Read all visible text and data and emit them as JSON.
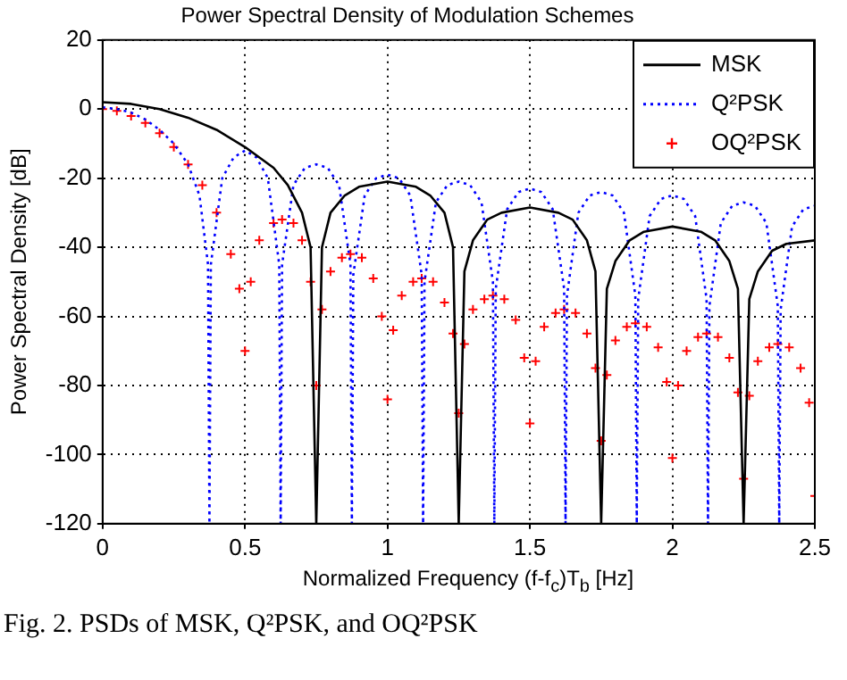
{
  "chart_data": {
    "type": "line",
    "title": "Power Spectral Density of Modulation Schemes",
    "xlabel": "Normalized Frequency (f-f$_{c}$)T$_{b}$ [Hz]",
    "ylabel": "Power Spectral Density [dB]",
    "annotations": [
      "Fig. 2. PSDs of MSK, Q²PSK, and OQ²PSK"
    ],
    "xlim": [
      0,
      2.5
    ],
    "ylim": [
      -120,
      20
    ],
    "xticks": [
      0,
      0.5,
      1,
      1.5,
      2,
      2.5
    ],
    "yticks": [
      -120,
      -100,
      -80,
      -60,
      -40,
      -20,
      0,
      20
    ],
    "grid": true,
    "legend": "top right",
    "series": [
      {
        "name": "MSK",
        "color": "#000000",
        "line_style": "solid",
        "marker": "none",
        "x": [
          0,
          0.1,
          0.2,
          0.3,
          0.4,
          0.5,
          0.6,
          0.65,
          0.7,
          0.73,
          0.75,
          0.77,
          0.8,
          0.85,
          0.9,
          1.0,
          1.1,
          1.15,
          1.2,
          1.23,
          1.25,
          1.27,
          1.3,
          1.35,
          1.4,
          1.5,
          1.6,
          1.65,
          1.7,
          1.73,
          1.75,
          1.77,
          1.8,
          1.85,
          1.9,
          2.0,
          2.1,
          2.15,
          2.2,
          2.23,
          2.25,
          2.27,
          2.3,
          2.35,
          2.4,
          2.5
        ],
        "values": [
          2,
          1.5,
          0,
          -2.5,
          -6,
          -11,
          -17,
          -22,
          -30,
          -40,
          -120,
          -40,
          -30,
          -25,
          -22.5,
          -21,
          -22.5,
          -25,
          -30,
          -40,
          -120,
          -47,
          -38,
          -32,
          -30,
          -28.5,
          -30,
          -32,
          -38,
          -47,
          -120,
          -52,
          -44,
          -38,
          -35.5,
          -34,
          -35.5,
          -38,
          -44,
          -52,
          -120,
          -55,
          -47,
          -41,
          -39,
          -38
        ]
      },
      {
        "name": "Q²PSK",
        "color": "#0000ff",
        "line_style": "dotted",
        "marker": "none",
        "x": [
          0,
          0.05,
          0.1,
          0.15,
          0.2,
          0.25,
          0.3,
          0.34,
          0.37,
          0.375,
          0.38,
          0.42,
          0.46,
          0.5,
          0.54,
          0.58,
          0.62,
          0.625,
          0.63,
          0.67,
          0.71,
          0.75,
          0.79,
          0.83,
          0.87,
          0.875,
          0.88,
          0.92,
          0.96,
          1.0,
          1.04,
          1.08,
          1.12,
          1.125,
          1.13,
          1.17,
          1.21,
          1.25,
          1.29,
          1.33,
          1.37,
          1.375,
          1.38,
          1.42,
          1.46,
          1.5,
          1.54,
          1.58,
          1.62,
          1.625,
          1.63,
          1.67,
          1.71,
          1.75,
          1.79,
          1.83,
          1.87,
          1.875,
          1.88,
          1.92,
          1.96,
          2.0,
          2.04,
          2.08,
          2.12,
          2.125,
          2.13,
          2.17,
          2.21,
          2.25,
          2.29,
          2.33,
          2.37,
          2.375,
          2.38,
          2.42,
          2.46,
          2.5
        ],
        "values": [
          0.5,
          0,
          -1,
          -3,
          -6,
          -10,
          -16,
          -25,
          -45,
          -120,
          -45,
          -20,
          -14,
          -12,
          -14,
          -20,
          -45,
          -120,
          -45,
          -22,
          -17,
          -16,
          -17,
          -22,
          -45,
          -120,
          -48,
          -25,
          -20,
          -19,
          -20,
          -25,
          -48,
          -120,
          -50,
          -27,
          -22,
          -21,
          -22,
          -27,
          -50,
          -120,
          -52,
          -29,
          -24,
          -23,
          -24,
          -29,
          -52,
          -120,
          -54,
          -30,
          -25,
          -24,
          -25,
          -30,
          -54,
          -120,
          -55,
          -31,
          -26,
          -25,
          -26,
          -31,
          -55,
          -120,
          -57,
          -33,
          -28,
          -27,
          -28,
          -33,
          -57,
          -120,
          -58,
          -34,
          -29,
          -28
        ]
      },
      {
        "name": "OQ²PSK",
        "color": "#ff0000",
        "type": "scatter",
        "marker": "cross",
        "x": [
          0,
          0.05,
          0.1,
          0.15,
          0.2,
          0.25,
          0.3,
          0.35,
          0.4,
          0.45,
          0.48,
          0.5,
          0.52,
          0.55,
          0.6,
          0.63,
          0.67,
          0.7,
          0.73,
          0.75,
          0.77,
          0.8,
          0.84,
          0.87,
          0.91,
          0.95,
          0.98,
          1.0,
          1.02,
          1.05,
          1.09,
          1.12,
          1.16,
          1.2,
          1.23,
          1.25,
          1.27,
          1.3,
          1.34,
          1.37,
          1.41,
          1.45,
          1.48,
          1.5,
          1.52,
          1.55,
          1.59,
          1.62,
          1.66,
          1.7,
          1.73,
          1.75,
          1.77,
          1.8,
          1.84,
          1.87,
          1.91,
          1.95,
          1.98,
          2.0,
          2.02,
          2.05,
          2.09,
          2.12,
          2.16,
          2.2,
          2.23,
          2.25,
          2.27,
          2.3,
          2.34,
          2.37,
          2.41,
          2.45,
          2.48,
          2.5
        ],
        "values": [
          0,
          -0.5,
          -2,
          -4,
          -7,
          -11,
          -16,
          -22,
          -30,
          -42,
          -52,
          -70,
          -50,
          -38,
          -33,
          -32,
          -33,
          -38,
          -50,
          -80,
          -58,
          -47,
          -43,
          -42,
          -43,
          -49,
          -60,
          -84,
          -64,
          -54,
          -50,
          -49,
          -50,
          -56,
          -65,
          -88,
          -68,
          -58,
          -55,
          -54,
          -55,
          -61,
          -72,
          -91,
          -73,
          -63,
          -59,
          -58,
          -59,
          -65,
          -75,
          -96,
          -77,
          -67,
          -63,
          -62,
          -63,
          -69,
          -79,
          -101,
          -80,
          -70,
          -66,
          -65,
          -66,
          -72,
          -82,
          -107,
          -83,
          -73,
          -69,
          -68,
          -69,
          -75,
          -85,
          -112
        ]
      }
    ]
  }
}
